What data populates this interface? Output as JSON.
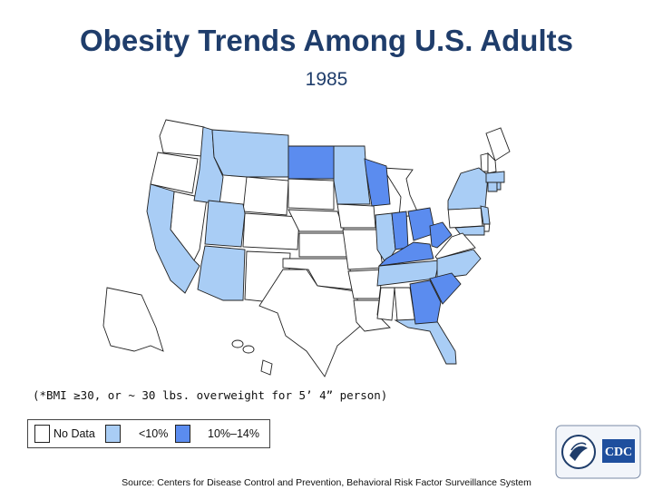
{
  "title": "Obesity Trends Among U.S. Adults",
  "year": "1985",
  "footnote": "(*BMI ≥30, or ~ 30 lbs. overweight for 5’ 4” person)",
  "legend": {
    "items": [
      {
        "label": "No Data",
        "color": "#ffffff"
      },
      {
        "label": "<10%",
        "color": "#a9cdf5"
      },
      {
        "label": "10%–14%",
        "color": "#5b8cef"
      }
    ]
  },
  "source": "Source: Centers for Disease Control and Prevention, Behavioral Risk Factor Surveillance System",
  "colors": {
    "no_data": "#ffffff",
    "under_10": "#a9cdf5",
    "ten_to_14": "#5b8cef",
    "title": "#1f3d6b"
  },
  "logo_text": "CDC"
}
